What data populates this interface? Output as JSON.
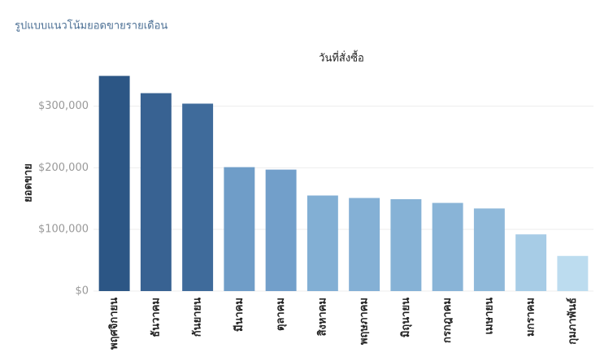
{
  "chart_data": {
    "type": "bar",
    "title": "รูปแบบแนวโน้มยอดขายรายเดือน",
    "x_label": "วันที่สั่งซื้อ",
    "y_label": "ยอดขาย",
    "categories": [
      "พฤศจิกายน",
      "ธันวาคม",
      "กันยายน",
      "มีนาคม",
      "ตุลาคม",
      "สิงหาคม",
      "พฤษภาคม",
      "มิถุนายน",
      "กรกฎาคม",
      "เมษายน",
      "มกราคม",
      "กุมภาพันธ์"
    ],
    "values": [
      349000,
      321000,
      304000,
      201000,
      197000,
      155000,
      151000,
      149000,
      143000,
      134000,
      92000,
      57000
    ],
    "colors": [
      "#2c5685",
      "#386292",
      "#3f6b9b",
      "#6f9dc8",
      "#729fca",
      "#82afd4",
      "#84b0d5",
      "#86b2d6",
      "#89b4d7",
      "#8fb9da",
      "#a7cce6",
      "#bcdcef"
    ],
    "ylim": [
      0,
      360000
    ],
    "yticks": [
      {
        "value": 0,
        "label": "$0"
      },
      {
        "value": 100000,
        "label": "$100,000"
      },
      {
        "value": 200000,
        "label": "$200,000"
      },
      {
        "value": 300000,
        "label": "$300,000"
      }
    ],
    "grid": true
  }
}
